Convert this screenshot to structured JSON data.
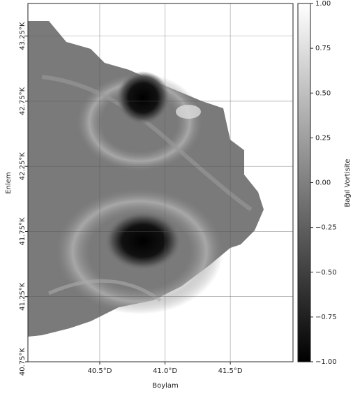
{
  "chart_data": {
    "type": "heatmap",
    "xlabel": "Boylam",
    "ylabel": "Enlem",
    "colorbar_label": "Bağıl Vortisite",
    "xlim": [
      39.95,
      41.98
    ],
    "ylim": [
      40.75,
      43.5
    ],
    "xticks": [
      {
        "value": 40.5,
        "label": "40.5°D"
      },
      {
        "value": 41.0,
        "label": "41.0°D"
      },
      {
        "value": 41.5,
        "label": "41.5°D"
      }
    ],
    "yticks": [
      {
        "value": 40.75,
        "label": "40.75°K"
      },
      {
        "value": 41.25,
        "label": "41.25°K"
      },
      {
        "value": 41.75,
        "label": "41.75°K"
      },
      {
        "value": 42.25,
        "label": "42.25°K"
      },
      {
        "value": 42.75,
        "label": "42.75°K"
      },
      {
        "value": 43.25,
        "label": "43.25°K"
      }
    ],
    "clim": [
      -1,
      1
    ],
    "cticks": [
      {
        "value": -1,
        "label": "−1.00"
      },
      {
        "value": -0.75,
        "label": "−0.75"
      },
      {
        "value": -0.5,
        "label": "−0.50"
      },
      {
        "value": -0.25,
        "label": "−0.25"
      },
      {
        "value": 0,
        "label": "0.00"
      },
      {
        "value": 0.25,
        "label": "0.25"
      },
      {
        "value": 0.5,
        "label": "0.50"
      },
      {
        "value": 0.75,
        "label": "0.75"
      },
      {
        "value": 1,
        "label": "1.00"
      }
    ],
    "cmap": "gray",
    "grid": true
  }
}
